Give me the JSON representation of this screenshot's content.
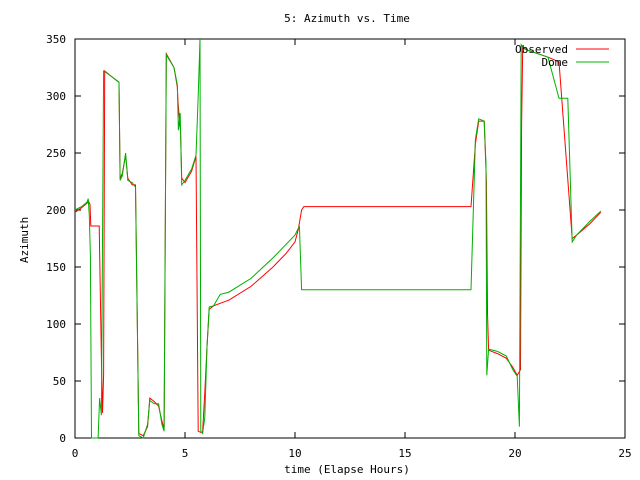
{
  "chart_data": {
    "type": "line",
    "title": "5: Azimuth vs. Time",
    "xlabel": "time (Elapse Hours)",
    "ylabel": "Azimuth",
    "xlim": [
      0,
      25
    ],
    "ylim": [
      0,
      350
    ],
    "x_ticks": [
      0,
      5,
      10,
      15,
      20,
      25
    ],
    "y_ticks": [
      0,
      50,
      100,
      150,
      200,
      250,
      300,
      350
    ],
    "grid": false,
    "legend_position": "top-right",
    "series": [
      {
        "name": "Observed",
        "color": "#ff0000",
        "points": [
          [
            0,
            198
          ],
          [
            0.3,
            202
          ],
          [
            0.55,
            206
          ],
          [
            0.6,
            208
          ],
          [
            0.68,
            205
          ],
          [
            0.72,
            186
          ],
          [
            1.0,
            186
          ],
          [
            1.1,
            186
          ],
          [
            1.2,
            70
          ],
          [
            1.25,
            22
          ],
          [
            1.3,
            55
          ],
          [
            1.35,
            322
          ],
          [
            1.6,
            318
          ],
          [
            2.0,
            312
          ],
          [
            2.05,
            228
          ],
          [
            2.15,
            232
          ],
          [
            2.3,
            248
          ],
          [
            2.4,
            228
          ],
          [
            2.6,
            222
          ],
          [
            2.75,
            222
          ],
          [
            2.9,
            4
          ],
          [
            3.1,
            2
          ],
          [
            3.3,
            10
          ],
          [
            3.4,
            35
          ],
          [
            3.6,
            32
          ],
          [
            3.8,
            28
          ],
          [
            3.95,
            15
          ],
          [
            4.05,
            8
          ],
          [
            4.15,
            337
          ],
          [
            4.5,
            325
          ],
          [
            4.65,
            308
          ],
          [
            4.68,
            295
          ],
          [
            4.8,
            268
          ],
          [
            4.85,
            228
          ],
          [
            5.0,
            224
          ],
          [
            5.3,
            234
          ],
          [
            5.5,
            247
          ],
          [
            5.6,
            6
          ],
          [
            5.7,
            5
          ],
          [
            5.8,
            5
          ],
          [
            5.9,
            40
          ],
          [
            6.0,
            80
          ],
          [
            6.1,
            113
          ],
          [
            6.3,
            116
          ],
          [
            7.0,
            121
          ],
          [
            8.0,
            133
          ],
          [
            9.0,
            150
          ],
          [
            9.6,
            162
          ],
          [
            10.0,
            172
          ],
          [
            10.15,
            183
          ],
          [
            10.3,
            200
          ],
          [
            10.4,
            203
          ],
          [
            11.0,
            203
          ],
          [
            12.0,
            203
          ],
          [
            14.0,
            203
          ],
          [
            16.0,
            203
          ],
          [
            17.5,
            203
          ],
          [
            18.0,
            203
          ],
          [
            18.2,
            258
          ],
          [
            18.35,
            278
          ],
          [
            18.6,
            278
          ],
          [
            18.7,
            225
          ],
          [
            18.75,
            110
          ],
          [
            18.8,
            77
          ],
          [
            19.2,
            74
          ],
          [
            19.6,
            70
          ],
          [
            19.9,
            62
          ],
          [
            20.1,
            55
          ],
          [
            20.25,
            60
          ],
          [
            20.3,
            275
          ],
          [
            20.35,
            342
          ],
          [
            20.6,
            340
          ],
          [
            21.5,
            334
          ],
          [
            22.0,
            330
          ],
          [
            22.6,
            175
          ],
          [
            22.8,
            178
          ],
          [
            23.4,
            188
          ],
          [
            23.9,
            198
          ]
        ]
      },
      {
        "name": "Dome",
        "color": "#00b000",
        "points": [
          [
            0,
            200
          ],
          [
            0.3,
            203
          ],
          [
            0.55,
            207
          ],
          [
            0.6,
            210
          ],
          [
            0.65,
            195
          ],
          [
            0.7,
            160
          ],
          [
            0.75,
            0
          ],
          [
            1.05,
            0
          ],
          [
            1.12,
            35
          ],
          [
            1.2,
            20
          ],
          [
            1.3,
            322
          ],
          [
            1.6,
            318
          ],
          [
            2.0,
            312
          ],
          [
            2.05,
            226
          ],
          [
            2.15,
            230
          ],
          [
            2.3,
            250
          ],
          [
            2.4,
            226
          ],
          [
            2.6,
            224
          ],
          [
            2.75,
            220
          ],
          [
            2.9,
            2
          ],
          [
            3.1,
            0
          ],
          [
            3.3,
            12
          ],
          [
            3.4,
            33
          ],
          [
            3.6,
            30
          ],
          [
            3.8,
            30
          ],
          [
            3.95,
            12
          ],
          [
            4.05,
            6
          ],
          [
            4.15,
            336
          ],
          [
            4.5,
            325
          ],
          [
            4.65,
            310
          ],
          [
            4.7,
            270
          ],
          [
            4.78,
            285
          ],
          [
            4.85,
            222
          ],
          [
            5.0,
            226
          ],
          [
            5.3,
            236
          ],
          [
            5.5,
            248
          ],
          [
            5.6,
            300
          ],
          [
            5.68,
            350
          ],
          [
            5.72,
            6
          ],
          [
            5.8,
            4
          ],
          [
            5.9,
            18
          ],
          [
            6.0,
            80
          ],
          [
            6.1,
            115
          ],
          [
            6.3,
            116
          ],
          [
            6.6,
            126
          ],
          [
            7.0,
            128
          ],
          [
            8.0,
            140
          ],
          [
            9.0,
            158
          ],
          [
            9.6,
            170
          ],
          [
            10.0,
            178
          ],
          [
            10.2,
            186
          ],
          [
            10.3,
            130
          ],
          [
            11.0,
            130
          ],
          [
            12.0,
            130
          ],
          [
            14.0,
            130
          ],
          [
            16.0,
            130
          ],
          [
            17.5,
            130
          ],
          [
            18.0,
            130
          ],
          [
            18.2,
            262
          ],
          [
            18.35,
            280
          ],
          [
            18.6,
            278
          ],
          [
            18.68,
            240
          ],
          [
            18.72,
            55
          ],
          [
            18.8,
            78
          ],
          [
            19.2,
            76
          ],
          [
            19.6,
            72
          ],
          [
            19.9,
            60
          ],
          [
            20.1,
            54
          ],
          [
            20.2,
            10
          ],
          [
            20.28,
            345
          ],
          [
            20.35,
            343
          ],
          [
            20.6,
            340
          ],
          [
            21.5,
            334
          ],
          [
            22.0,
            298
          ],
          [
            22.4,
            298
          ],
          [
            22.6,
            172
          ],
          [
            22.8,
            178
          ],
          [
            23.4,
            190
          ],
          [
            23.9,
            199
          ]
        ]
      }
    ]
  }
}
